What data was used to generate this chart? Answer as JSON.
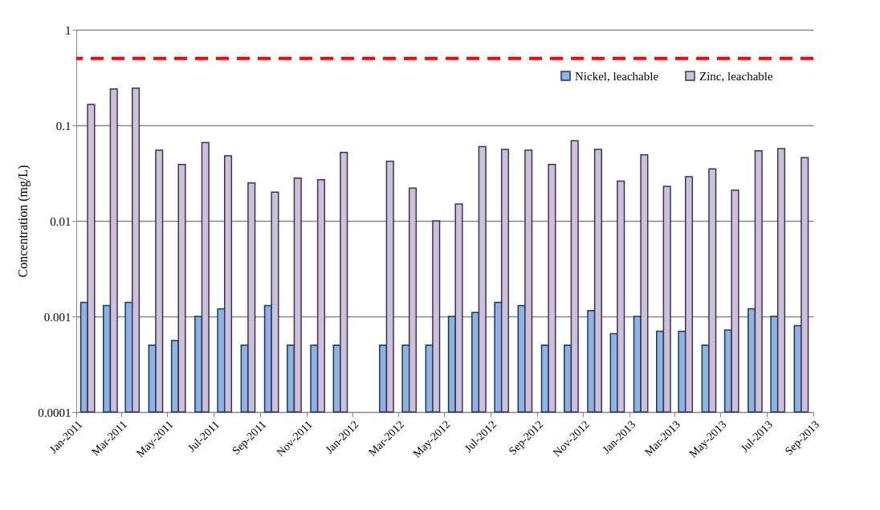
{
  "chart_data": {
    "type": "bar",
    "ylabel": "Concentration (mg/L)",
    "log": true,
    "grid": "y",
    "legend": "top right",
    "x": [
      "2011-01-16",
      "2011-02-15",
      "2011-03-16",
      "2011-04-16",
      "2011-05-16",
      "2011-06-16",
      "2011-07-16",
      "2011-08-16",
      "2011-09-16",
      "2011-10-16",
      "2011-11-16",
      "2011-12-16",
      "2012-01-16",
      "2012-02-15",
      "2012-03-16",
      "2012-04-16",
      "2012-05-16",
      "2012-06-16",
      "2012-07-16",
      "2012-08-16",
      "2012-09-16",
      "2012-10-16",
      "2012-11-16",
      "2012-12-16",
      "2013-01-16",
      "2013-02-15",
      "2013-03-16",
      "2013-04-16",
      "2013-05-16",
      "2013-06-16",
      "2013-07-16",
      "2013-08-16"
    ],
    "series": [
      {
        "name": "Nickel, leachable",
        "color": "#8db3e2",
        "values": [
          0.0014,
          0.0013,
          0.0014,
          0.0005,
          0.00056,
          0.001,
          0.0012,
          0.0005,
          0.0013,
          0.0005,
          0.0005,
          0.0005,
          null,
          0.0005,
          0.0005,
          0.0005,
          0.001,
          0.0011,
          0.0014,
          0.0013,
          0.0005,
          0.0005,
          0.00115,
          0.00066,
          0.001,
          0.0007,
          0.0007,
          0.0005,
          0.00072,
          0.0012,
          0.001,
          0.0008
        ]
      },
      {
        "name": "Zinc, leachable",
        "color": "#ccc1da",
        "values": [
          0.165,
          0.24,
          0.245,
          0.055,
          0.039,
          0.066,
          0.048,
          0.025,
          0.02,
          0.028,
          0.027,
          0.052,
          null,
          0.042,
          0.022,
          0.01,
          0.015,
          0.06,
          0.056,
          0.055,
          0.039,
          0.069,
          0.056,
          0.026,
          0.049,
          0.023,
          0.029,
          0.035,
          0.021,
          0.054,
          0.057,
          0.046
        ]
      }
    ],
    "xlim": [
      "2011-01",
      "2013-09"
    ],
    "xticks": [
      {
        "value": "2011-01",
        "label": "Jan-2011"
      },
      {
        "value": "2011-03",
        "label": "Mar-2011"
      },
      {
        "value": "2011-05",
        "label": "May-2011"
      },
      {
        "value": "2011-07",
        "label": "Jul-2011"
      },
      {
        "value": "2011-09",
        "label": "Sep-2011"
      },
      {
        "value": "2011-11",
        "label": "Nov-2011"
      },
      {
        "value": "2012-01",
        "label": "Jan-2012"
      },
      {
        "value": "2012-03",
        "label": "Mar-2012"
      },
      {
        "value": "2012-05",
        "label": "May-2012"
      },
      {
        "value": "2012-07",
        "label": "Jul-2012"
      },
      {
        "value": "2012-09",
        "label": "Sep-2012"
      },
      {
        "value": "2012-11",
        "label": "Nov-2012"
      },
      {
        "value": "2013-01",
        "label": "Jan-2013"
      },
      {
        "value": "2013-03",
        "label": "Mar-2013"
      },
      {
        "value": "2013-05",
        "label": "May-2013"
      },
      {
        "value": "2013-07",
        "label": "Jul-2013"
      },
      {
        "value": "2013-09",
        "label": "Sep-2013"
      }
    ],
    "ylim": [
      0.0001,
      1
    ],
    "yticks": [
      0.0001,
      0.001,
      0.01,
      0.1,
      1
    ],
    "ref_lines": [
      {
        "axis": "y",
        "value": 0.5,
        "color": "#ff0000",
        "line_style": "dashed"
      }
    ]
  }
}
